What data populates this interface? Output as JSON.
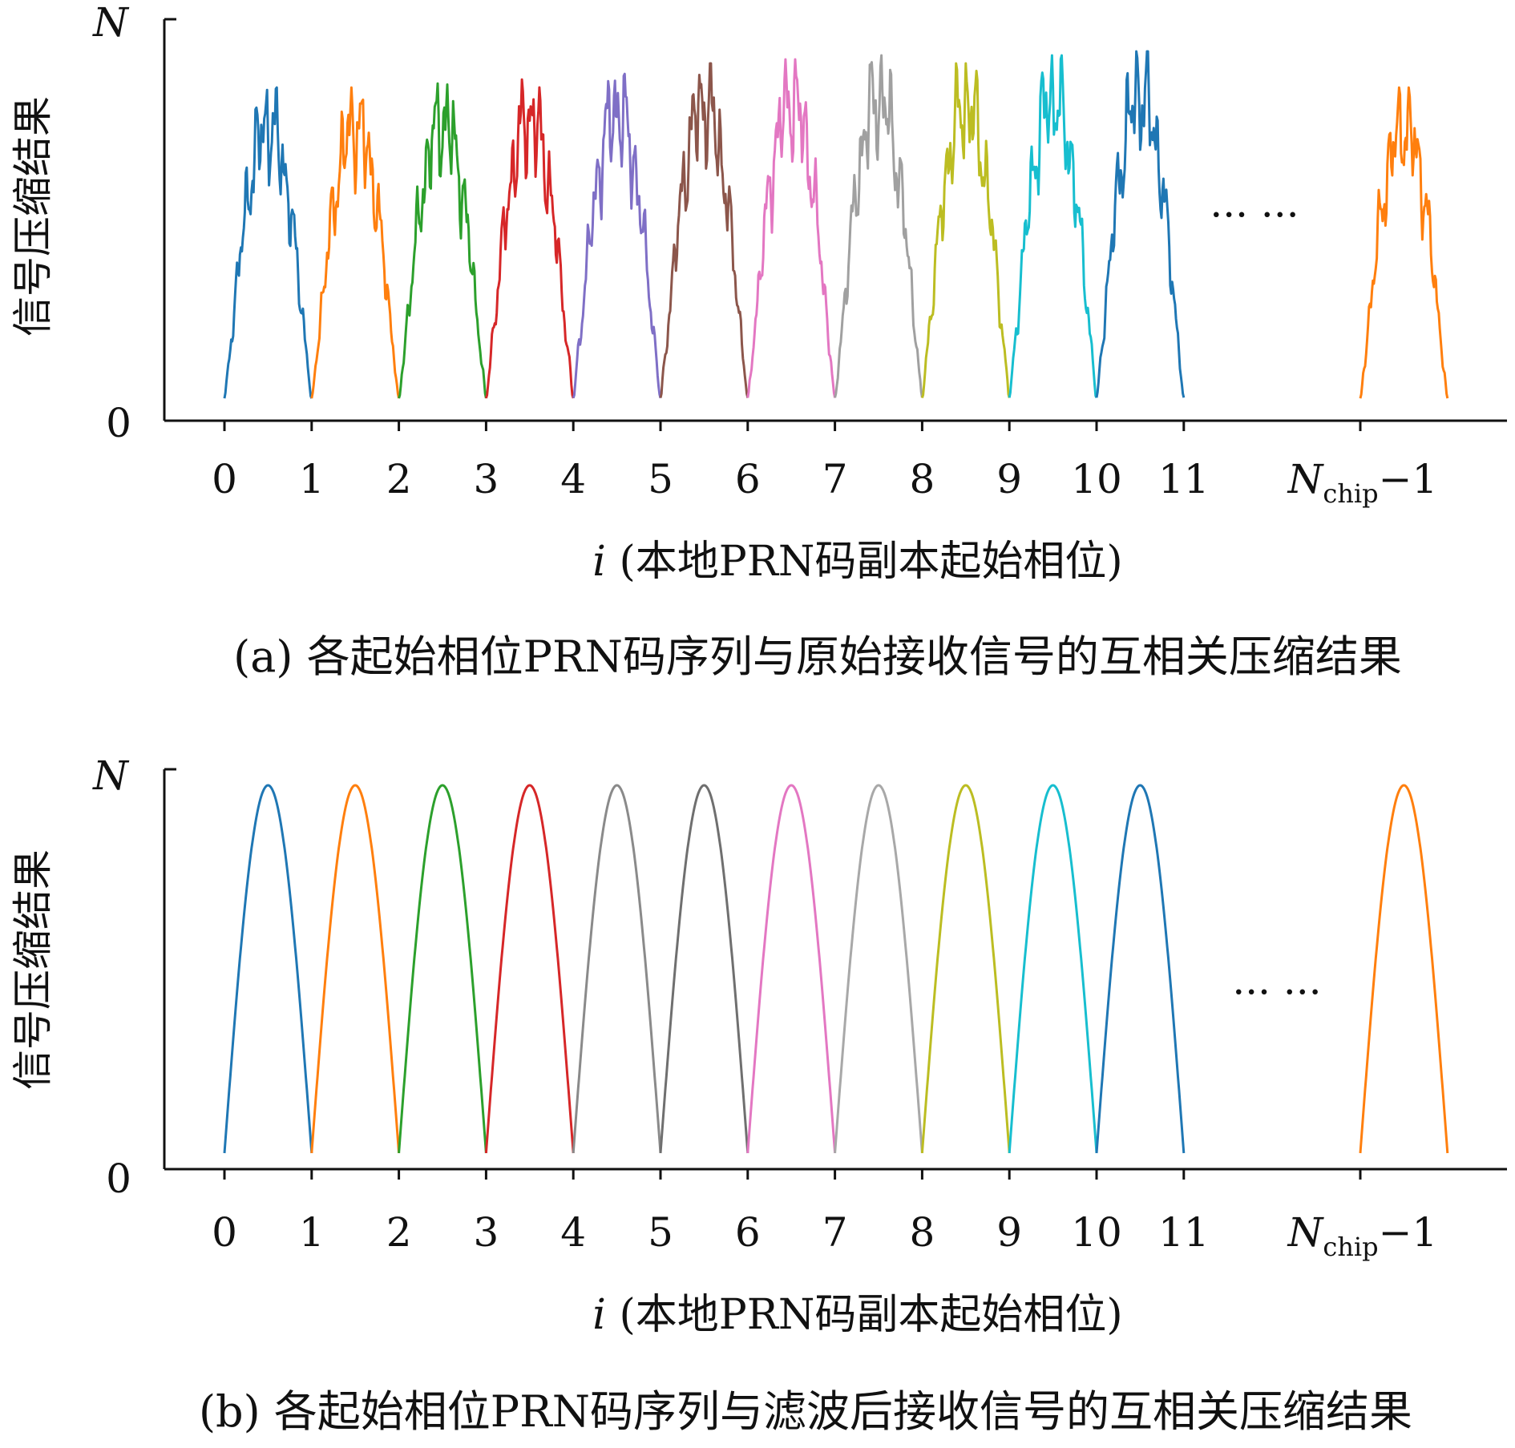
{
  "panels": [
    {
      "caption": "(a) 各起始相位PRN码序列与原始接收信号的互相关压缩结果",
      "chart_data": {
        "type": "line",
        "ylabel": "信号压缩结果",
        "ytick_labels": {
          "top": "N",
          "bottom": "0"
        },
        "ylim": [
          0,
          1
        ],
        "xlabel_var": "i",
        "xlabel_text": " (本地PRN码副本起始相位)",
        "xtick_labels": [
          "0",
          "1",
          "2",
          "3",
          "4",
          "5",
          "6",
          "7",
          "8",
          "9",
          "10",
          "11"
        ],
        "last_tick": {
          "base": "N",
          "sub": "chip",
          "suffix": "−1"
        },
        "ellipsis": "··· ···",
        "noisy": true,
        "series": [
          {
            "start": 0,
            "peak": 0.83,
            "color": "#1f77b4"
          },
          {
            "start": 1,
            "peak": 0.83,
            "color": "#ff7f0e"
          },
          {
            "start": 2,
            "peak": 0.84,
            "color": "#2ca02c"
          },
          {
            "start": 3,
            "peak": 0.85,
            "color": "#d62728"
          },
          {
            "start": 4,
            "peak": 0.87,
            "color": "#7f6fc6"
          },
          {
            "start": 5,
            "peak": 0.89,
            "color": "#8c564b"
          },
          {
            "start": 6,
            "peak": 0.9,
            "color": "#e377c2"
          },
          {
            "start": 7,
            "peak": 0.91,
            "color": "#a0a0a0"
          },
          {
            "start": 8,
            "peak": 0.89,
            "color": "#bcbd22"
          },
          {
            "start": 9,
            "peak": 0.91,
            "color": "#17becf"
          },
          {
            "start": 10,
            "peak": 0.92,
            "color": "#1f77b4"
          },
          {
            "start": "N_chip-1",
            "peak": 0.83,
            "color": "#ff7f0e"
          }
        ]
      }
    },
    {
      "caption": "(b) 各起始相位PRN码序列与滤波后接收信号的互相关压缩结果",
      "chart_data": {
        "type": "line",
        "ylabel": "信号压缩结果",
        "ytick_labels": {
          "top": "N",
          "bottom": "0"
        },
        "ylim": [
          0,
          1
        ],
        "xlabel_var": "i",
        "xlabel_text": " (本地PRN码副本起始相位)",
        "xtick_labels": [
          "0",
          "1",
          "2",
          "3",
          "4",
          "5",
          "6",
          "7",
          "8",
          "9",
          "10",
          "11"
        ],
        "last_tick": {
          "base": "N",
          "sub": "chip",
          "suffix": "−1"
        },
        "ellipsis": "··· ···",
        "noisy": false,
        "series": [
          {
            "start": 0,
            "peak": 0.96,
            "color": "#1f77b4"
          },
          {
            "start": 1,
            "peak": 0.96,
            "color": "#ff7f0e"
          },
          {
            "start": 2,
            "peak": 0.96,
            "color": "#2ca02c"
          },
          {
            "start": 3,
            "peak": 0.96,
            "color": "#d62728"
          },
          {
            "start": 4,
            "peak": 0.96,
            "color": "#8a8a8a"
          },
          {
            "start": 5,
            "peak": 0.96,
            "color": "#6f6f6f"
          },
          {
            "start": 6,
            "peak": 0.96,
            "color": "#e377c2"
          },
          {
            "start": 7,
            "peak": 0.96,
            "color": "#a8a8a8"
          },
          {
            "start": 8,
            "peak": 0.96,
            "color": "#bcbd22"
          },
          {
            "start": 9,
            "peak": 0.96,
            "color": "#17becf"
          },
          {
            "start": 10,
            "peak": 0.96,
            "color": "#1f77b4"
          },
          {
            "start": "N_chip-1",
            "peak": 0.96,
            "color": "#ff7f0e"
          }
        ]
      }
    }
  ]
}
